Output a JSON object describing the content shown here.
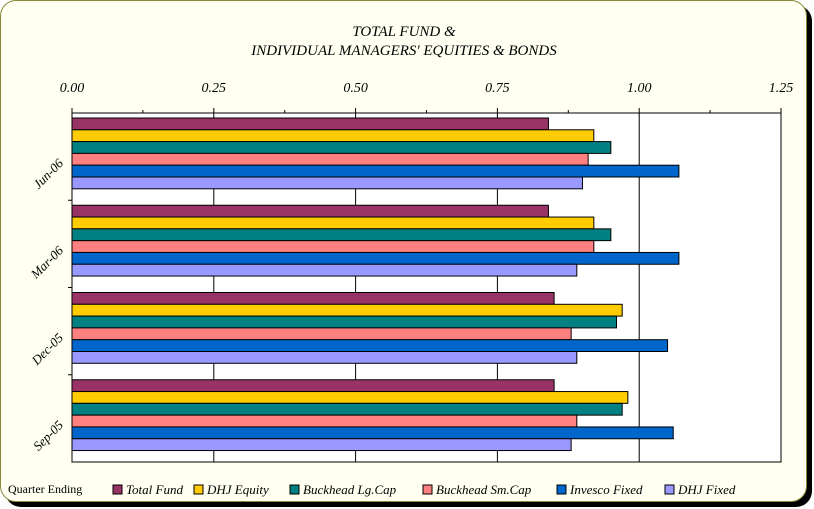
{
  "chart_data": {
    "type": "bar",
    "orientation": "horizontal",
    "title": [
      "TOTAL FUND &",
      "INDIVIDUAL MANAGERS' EQUITIES & BONDS"
    ],
    "xlim": [
      0,
      1.25
    ],
    "x_ticks": [
      "0.00",
      "0.25",
      "0.50",
      "0.75",
      "1.00",
      "1.25"
    ],
    "categories": [
      "Jun-06",
      "Mar-06",
      "Dec-05",
      "Sep-05"
    ],
    "legend_label": "Quarter Ending",
    "legend_position": "bottom",
    "grid": true,
    "series": [
      {
        "name": "Total Fund",
        "color": "#993366",
        "values": [
          0.84,
          0.84,
          0.85,
          0.85
        ]
      },
      {
        "name": "DHJ Equity",
        "color": "#ffcc00",
        "values": [
          0.92,
          0.92,
          0.97,
          0.98
        ]
      },
      {
        "name": "Buckhead Lg.Cap",
        "color": "#008080",
        "values": [
          0.95,
          0.95,
          0.96,
          0.97
        ]
      },
      {
        "name": "Buckhead Sm.Cap",
        "color": "#ff8080",
        "values": [
          0.91,
          0.92,
          0.88,
          0.89
        ]
      },
      {
        "name": "Invesco Fixed",
        "color": "#0066cc",
        "values": [
          1.07,
          1.07,
          1.05,
          1.06
        ]
      },
      {
        "name": "DHJ Fixed",
        "color": "#9999ff",
        "values": [
          0.9,
          0.89,
          0.89,
          0.88
        ]
      }
    ]
  }
}
